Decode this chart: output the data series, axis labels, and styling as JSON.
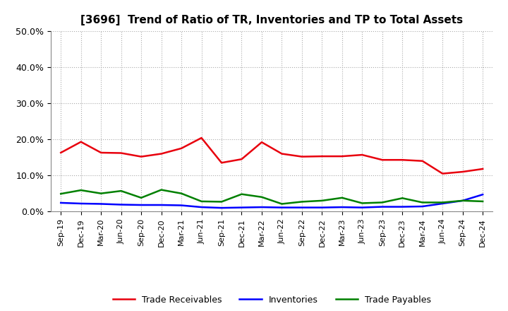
{
  "title": "[3696]  Trend of Ratio of TR, Inventories and TP to Total Assets",
  "labels": [
    "Sep-19",
    "Dec-19",
    "Mar-20",
    "Jun-20",
    "Sep-20",
    "Dec-20",
    "Mar-21",
    "Jun-21",
    "Sep-21",
    "Dec-21",
    "Mar-22",
    "Jun-22",
    "Sep-22",
    "Dec-22",
    "Mar-23",
    "Jun-23",
    "Sep-23",
    "Dec-23",
    "Mar-24",
    "Jun-24",
    "Sep-24",
    "Dec-24"
  ],
  "trade_receivables": [
    0.163,
    0.193,
    0.163,
    0.162,
    0.152,
    0.16,
    0.175,
    0.204,
    0.135,
    0.145,
    0.192,
    0.16,
    0.152,
    0.153,
    0.153,
    0.157,
    0.143,
    0.143,
    0.14,
    0.105,
    0.11,
    0.118
  ],
  "inventories": [
    0.024,
    0.022,
    0.021,
    0.019,
    0.018,
    0.018,
    0.017,
    0.012,
    0.01,
    0.011,
    0.012,
    0.011,
    0.011,
    0.011,
    0.012,
    0.011,
    0.013,
    0.013,
    0.014,
    0.022,
    0.03,
    0.047
  ],
  "trade_payables": [
    0.049,
    0.059,
    0.05,
    0.057,
    0.038,
    0.06,
    0.05,
    0.028,
    0.027,
    0.048,
    0.04,
    0.021,
    0.027,
    0.03,
    0.038,
    0.023,
    0.025,
    0.037,
    0.025,
    0.025,
    0.03,
    0.028
  ],
  "tr_color": "#e8000d",
  "inv_color": "#0000ff",
  "tp_color": "#008000",
  "ylim": [
    0.0,
    0.5
  ],
  "yticks": [
    0.0,
    0.1,
    0.2,
    0.3,
    0.4,
    0.5
  ],
  "line_width": 1.8,
  "bg_color": "#ffffff",
  "plot_bg_color": "#ffffff",
  "grid_color": "#aaaaaa",
  "legend_labels": [
    "Trade Receivables",
    "Inventories",
    "Trade Payables"
  ]
}
